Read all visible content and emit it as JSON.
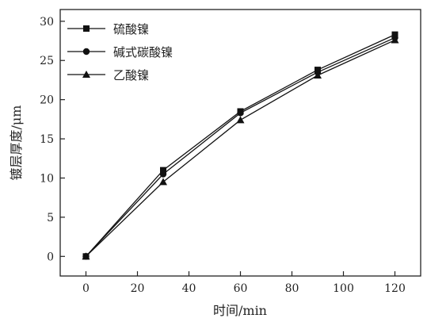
{
  "chart_data": {
    "type": "line",
    "xlabel": "时间/min",
    "ylabel": "镀层厚度/μm",
    "xlim": [
      -10,
      130
    ],
    "ylim": [
      -2.5,
      31.5
    ],
    "xticks": [
      0,
      20,
      40,
      60,
      80,
      100,
      120
    ],
    "yticks": [
      0,
      5,
      10,
      15,
      20,
      25,
      30
    ],
    "x": [
      0,
      30,
      60,
      90,
      120
    ],
    "legend_position": "top-left",
    "grid": false,
    "series": [
      {
        "name": "硫酸镍",
        "marker": "square",
        "values": [
          0,
          11.0,
          18.5,
          23.8,
          28.3
        ]
      },
      {
        "name": "碱式碳酸镍",
        "marker": "circle",
        "values": [
          0,
          10.5,
          18.3,
          23.5,
          27.9
        ]
      },
      {
        "name": "乙酸镍",
        "marker": "triangle",
        "values": [
          0,
          9.5,
          17.4,
          23.1,
          27.6
        ]
      }
    ]
  }
}
